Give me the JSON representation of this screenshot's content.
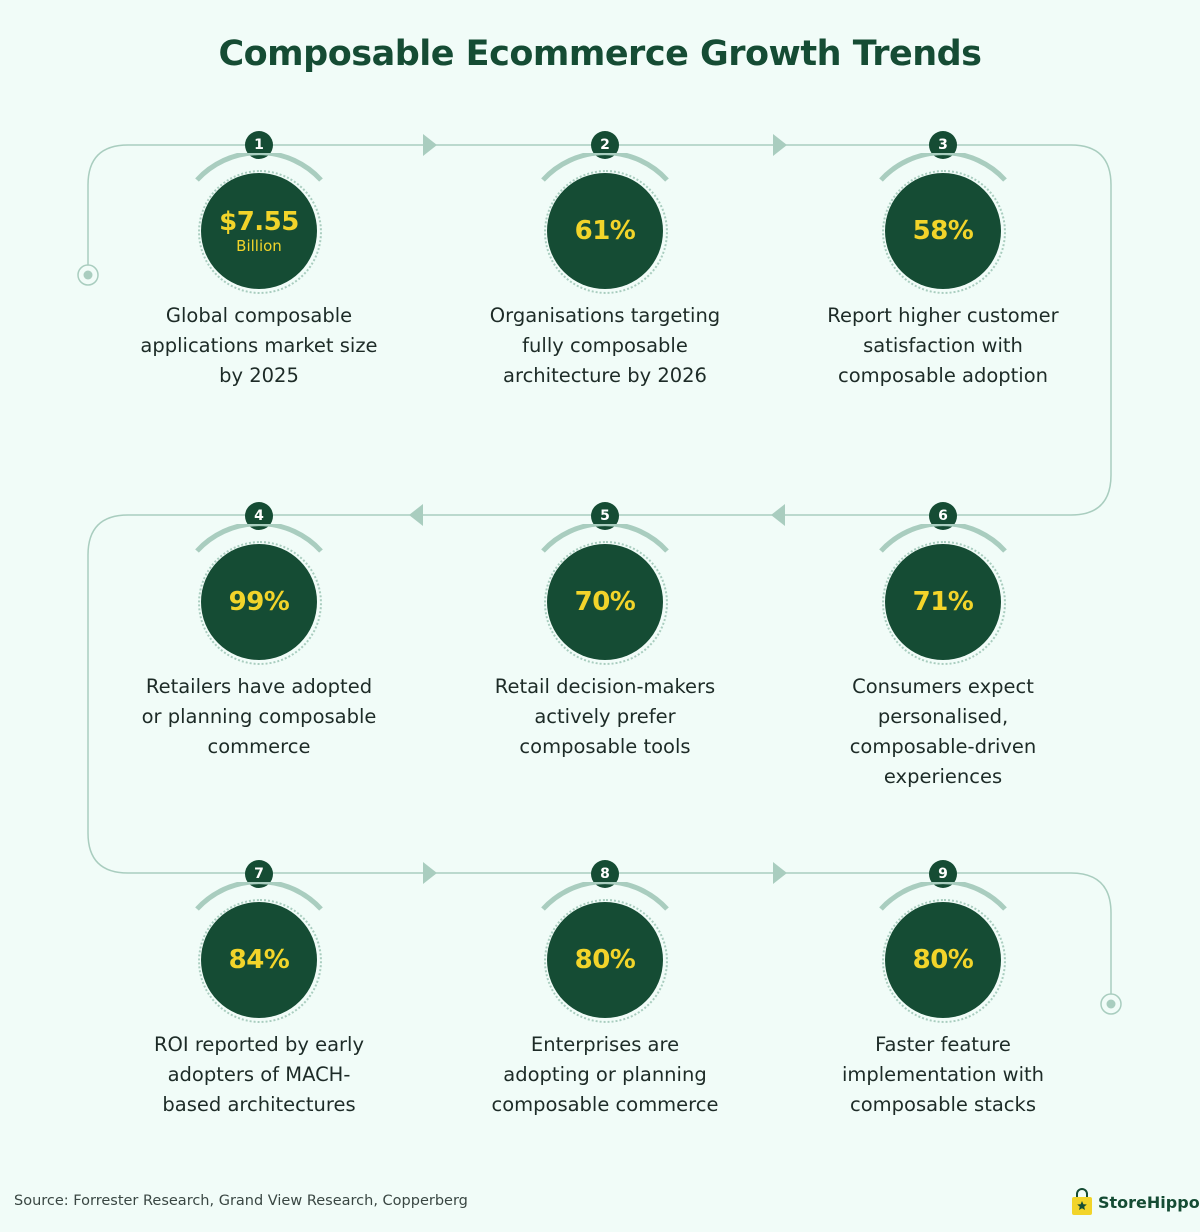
{
  "title": "Composable Ecommerce Growth Trends",
  "stats": [
    {
      "number": "1",
      "value": "$7.55",
      "value_sub": "Billion",
      "description": "Global composable applications market size by 2025"
    },
    {
      "number": "2",
      "value": "61%",
      "description": "Organisations targeting fully composable architecture by 2026"
    },
    {
      "number": "3",
      "value": "58%",
      "description": "Report higher customer satisfaction with composable adoption"
    },
    {
      "number": "4",
      "value": "99%",
      "description": "Retailers have adopted or planning composable commerce"
    },
    {
      "number": "5",
      "value": "70%",
      "description": "Retail decision-makers actively prefer composable tools"
    },
    {
      "number": "6",
      "value": "71%",
      "description": "Consumers expect personalised, composable-driven experiences"
    },
    {
      "number": "7",
      "value": "84%",
      "description": "ROI reported by early adopters of MACH-based architectures"
    },
    {
      "number": "8",
      "value": "80%",
      "description": "Enterprises are adopting or planning composable commerce"
    },
    {
      "number": "9",
      "value": "80%",
      "description": "Faster feature implementation with composable stacks"
    }
  ],
  "source": "Source: Forrester Research, Grand View Research, Copperberg",
  "brand": {
    "name": "StoreHippo",
    "icon": "shopping-bag-icon"
  },
  "colors": {
    "primary": "#154c34",
    "accent": "#f2d42a",
    "background": "#f1fcf8",
    "connector": "#a9cdbf"
  }
}
